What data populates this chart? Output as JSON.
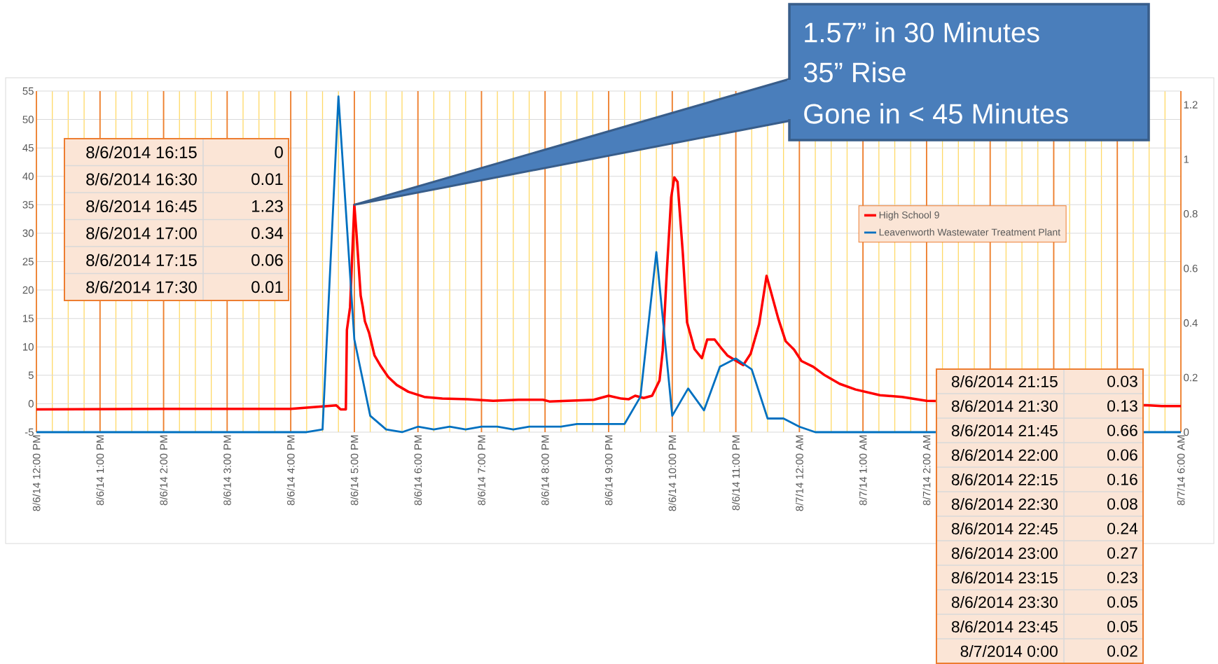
{
  "chart_data": {
    "type": "line",
    "xlim": [
      "2014-08-06T12:00",
      "2014-08-07T06:00"
    ],
    "xticks": [
      {
        "value": "2014-08-06T12:00",
        "label": "8/6/14 12:00 PM"
      },
      {
        "value": "2014-08-06T13:00",
        "label": "8/6/14 1:00 PM"
      },
      {
        "value": "2014-08-06T14:00",
        "label": "8/6/14 2:00 PM"
      },
      {
        "value": "2014-08-06T15:00",
        "label": "8/6/14 3:00 PM"
      },
      {
        "value": "2014-08-06T16:00",
        "label": "8/6/14 4:00 PM"
      },
      {
        "value": "2014-08-06T17:00",
        "label": "8/6/14 5:00 PM"
      },
      {
        "value": "2014-08-06T18:00",
        "label": "8/6/14 6:00 PM"
      },
      {
        "value": "2014-08-06T19:00",
        "label": "8/6/14 7:00 PM"
      },
      {
        "value": "2014-08-06T20:00",
        "label": "8/6/14 8:00 PM"
      },
      {
        "value": "2014-08-06T21:00",
        "label": "8/6/14 9:00 PM"
      },
      {
        "value": "2014-08-06T22:00",
        "label": "8/6/14 10:00 PM"
      },
      {
        "value": "2014-08-06T23:00",
        "label": "8/6/14 11:00 PM"
      },
      {
        "value": "2014-08-07T00:00",
        "label": "8/7/14 12:00 AM"
      },
      {
        "value": "2014-08-07T01:00",
        "label": "8/7/14 1:00 AM"
      },
      {
        "value": "2014-08-07T02:00",
        "label": "8/7/14 2:00 AM"
      },
      {
        "value": "2014-08-07T03:00",
        "label": null
      },
      {
        "value": "2014-08-07T04:00",
        "label": null
      },
      {
        "value": "2014-08-07T05:00",
        "label": null
      },
      {
        "value": "2014-08-07T06:00",
        "label": "8/7/14 6:00 AM"
      },
      {
        "value": "2014-08-06T12:15",
        "label": null
      },
      {
        "value": "2014-08-06T12:30",
        "label": null
      },
      {
        "value": "2014-08-06T12:45",
        "label": null
      },
      {
        "value": "2014-08-06T13:15",
        "label": null
      },
      {
        "value": "2014-08-06T13:30",
        "label": null
      },
      {
        "value": "2014-08-06T13:45",
        "label": null
      },
      {
        "value": "2014-08-06T14:15",
        "label": null
      },
      {
        "value": "2014-08-06T14:30",
        "label": null
      },
      {
        "value": "2014-08-06T14:45",
        "label": null
      },
      {
        "value": "2014-08-06T15:15",
        "label": null
      },
      {
        "value": "2014-08-06T15:30",
        "label": null
      },
      {
        "value": "2014-08-06T15:45",
        "label": null
      },
      {
        "value": "2014-08-06T16:15",
        "label": null
      },
      {
        "value": "2014-08-06T16:30",
        "label": null
      },
      {
        "value": "2014-08-06T16:45",
        "label": null
      },
      {
        "value": "2014-08-06T17:15",
        "label": null
      },
      {
        "value": "2014-08-06T17:30",
        "label": null
      },
      {
        "value": "2014-08-06T17:45",
        "label": null
      },
      {
        "value": "2014-08-06T18:15",
        "label": null
      },
      {
        "value": "2014-08-06T18:30",
        "label": null
      },
      {
        "value": "2014-08-06T18:45",
        "label": null
      },
      {
        "value": "2014-08-06T19:15",
        "label": null
      },
      {
        "value": "2014-08-06T19:30",
        "label": null
      },
      {
        "value": "2014-08-06T19:45",
        "label": null
      },
      {
        "value": "2014-08-06T20:15",
        "label": null
      },
      {
        "value": "2014-08-06T20:30",
        "label": null
      },
      {
        "value": "2014-08-06T20:45",
        "label": null
      },
      {
        "value": "2014-08-06T21:15",
        "label": null
      },
      {
        "value": "2014-08-06T21:30",
        "label": null
      },
      {
        "value": "2014-08-06T21:45",
        "label": null
      },
      {
        "value": "2014-08-06T22:15",
        "label": null
      },
      {
        "value": "2014-08-06T22:30",
        "label": null
      },
      {
        "value": "2014-08-06T22:45",
        "label": null
      },
      {
        "value": "2014-08-06T23:15",
        "label": null
      },
      {
        "value": "2014-08-06T23:30",
        "label": null
      },
      {
        "value": "2014-08-06T23:45",
        "label": null
      },
      {
        "value": "2014-08-07T00:15",
        "label": null
      },
      {
        "value": "2014-08-07T00:30",
        "label": null
      },
      {
        "value": "2014-08-07T00:45",
        "label": null
      },
      {
        "value": "2014-08-07T01:15",
        "label": null
      },
      {
        "value": "2014-08-07T01:30",
        "label": null
      },
      {
        "value": "2014-08-07T01:45",
        "label": null
      },
      {
        "value": "2014-08-07T02:15",
        "label": null
      },
      {
        "value": "2014-08-07T02:30",
        "label": null
      },
      {
        "value": "2014-08-07T02:45",
        "label": null
      },
      {
        "value": "2014-08-07T03:15",
        "label": null
      },
      {
        "value": "2014-08-07T03:30",
        "label": null
      },
      {
        "value": "2014-08-07T03:45",
        "label": null
      },
      {
        "value": "2014-08-07T04:15",
        "label": null
      },
      {
        "value": "2014-08-07T04:30",
        "label": null
      },
      {
        "value": "2014-08-07T04:45",
        "label": null
      },
      {
        "value": "2014-08-07T05:15",
        "label": null
      },
      {
        "value": "2014-08-07T05:30",
        "label": null
      },
      {
        "value": "2014-08-07T05:45",
        "label": null
      }
    ],
    "ylim": [
      -5,
      55
    ],
    "yticks": [
      -5,
      0,
      5,
      10,
      15,
      20,
      25,
      30,
      35,
      40,
      45,
      50,
      55
    ],
    "y2lim": [
      0,
      1.25
    ],
    "y2ticks": [
      0,
      0.2,
      0.4,
      0.6,
      0.8,
      1,
      1.2
    ],
    "grid": true,
    "legend": "top right",
    "series": [
      {
        "name": "High School 9",
        "color": "#ff0000",
        "x": [
          "2014-08-06T12:00",
          "2014-08-06T14:00",
          "2014-08-06T16:00",
          "2014-08-06T16:43",
          "2014-08-06T16:47",
          "2014-08-06T16:52",
          "2014-08-06T16:53",
          "2014-08-06T16:56",
          "2014-08-06T17:00",
          "2014-08-06T17:02",
          "2014-08-06T17:06",
          "2014-08-06T17:08",
          "2014-08-06T17:10",
          "2014-08-06T17:14",
          "2014-08-06T17:19",
          "2014-08-06T17:25",
          "2014-08-06T17:32",
          "2014-08-06T17:40",
          "2014-08-06T17:51",
          "2014-08-06T18:06",
          "2014-08-06T18:23",
          "2014-08-06T18:47",
          "2014-08-06T19:11",
          "2014-08-06T19:35",
          "2014-08-06T19:58",
          "2014-08-06T20:04",
          "2014-08-06T20:34",
          "2014-08-06T20:46",
          "2014-08-06T21:00",
          "2014-08-06T21:12",
          "2014-08-06T21:19",
          "2014-08-06T21:25",
          "2014-08-06T21:33",
          "2014-08-06T21:41",
          "2014-08-06T21:48",
          "2014-08-06T21:51",
          "2014-08-06T21:55",
          "2014-08-06T21:59",
          "2014-08-06T22:02",
          "2014-08-06T22:05",
          "2014-08-06T22:10",
          "2014-08-06T22:14",
          "2014-08-06T22:21",
          "2014-08-06T22:28",
          "2014-08-06T22:33",
          "2014-08-06T22:40",
          "2014-08-06T22:47",
          "2014-08-06T22:52",
          "2014-08-06T22:59",
          "2014-08-06T23:07",
          "2014-08-06T23:14",
          "2014-08-06T23:22",
          "2014-08-06T23:29",
          "2014-08-06T23:40",
          "2014-08-06T23:47",
          "2014-08-06T23:55",
          "2014-08-07T00:02",
          "2014-08-07T00:13",
          "2014-08-07T00:24",
          "2014-08-07T00:38",
          "2014-08-07T00:53",
          "2014-08-07T01:16",
          "2014-08-07T01:37",
          "2014-08-07T02:00",
          "2014-08-07T05:30",
          "2014-08-07T05:42",
          "2014-08-07T06:00"
        ],
        "values": [
          -1,
          -0.9,
          -0.9,
          -0.3,
          -1,
          -1,
          13,
          17,
          35,
          30,
          19,
          17,
          14.5,
          12.4,
          8.5,
          6.6,
          4.7,
          3.3,
          2.1,
          1.2,
          0.9,
          0.8,
          0.5,
          0.7,
          0.7,
          0.4,
          0.6,
          0.7,
          1.4,
          0.9,
          0.8,
          1.4,
          1,
          1.4,
          4.1,
          9.3,
          23.6,
          36.3,
          39.8,
          39,
          26.4,
          14.3,
          9.6,
          8,
          11.3,
          11.3,
          9.6,
          8.5,
          7.7,
          6.8,
          8.8,
          14,
          22.5,
          15,
          11,
          9.5,
          7.5,
          6.5,
          5,
          3.5,
          2.5,
          1.5,
          1.2,
          0.5,
          -0.3,
          -0.4,
          -0.4
        ]
      },
      {
        "name": "Leavenworth Wastewater Treatment Plant",
        "color": "#0070c0",
        "axis": "y2",
        "x": [
          "2014-08-06T12:00",
          "2014-08-06T16:15",
          "2014-08-06T16:30",
          "2014-08-06T16:45",
          "2014-08-06T17:00",
          "2014-08-06T17:15",
          "2014-08-06T17:30",
          "2014-08-06T17:45",
          "2014-08-06T18:00",
          "2014-08-06T18:15",
          "2014-08-06T18:30",
          "2014-08-06T18:45",
          "2014-08-06T19:00",
          "2014-08-06T19:15",
          "2014-08-06T19:30",
          "2014-08-06T19:45",
          "2014-08-06T20:00",
          "2014-08-06T20:15",
          "2014-08-06T20:30",
          "2014-08-06T20:45",
          "2014-08-06T21:00",
          "2014-08-06T21:15",
          "2014-08-06T21:30",
          "2014-08-06T21:45",
          "2014-08-06T22:00",
          "2014-08-06T22:15",
          "2014-08-06T22:30",
          "2014-08-06T22:45",
          "2014-08-06T23:00",
          "2014-08-06T23:15",
          "2014-08-06T23:30",
          "2014-08-06T23:45",
          "2014-08-07T00:00",
          "2014-08-07T00:15",
          "2014-08-07T06:00"
        ],
        "values": [
          0,
          0,
          0.01,
          1.23,
          0.34,
          0.06,
          0.01,
          0,
          0.02,
          0.01,
          0.02,
          0.01,
          0.02,
          0.02,
          0.01,
          0.02,
          0.02,
          0.02,
          0.03,
          0.03,
          0.03,
          0.03,
          0.13,
          0.66,
          0.06,
          0.16,
          0.08,
          0.24,
          0.27,
          0.23,
          0.05,
          0.05,
          0.02,
          0,
          0
        ]
      }
    ],
    "annotations": [
      "1.57” in 30 Minutes",
      "35” Rise",
      "Gone in < 45 Minutes",
      "8/6/2014 16:15",
      "0",
      "8/6/2014 16:30",
      "0.01",
      "8/6/2014 16:45",
      "1.23",
      "8/6/2014 17:00",
      "0.34",
      "8/6/2014 17:15",
      "0.06",
      "8/6/2014 17:30",
      "0.01",
      "8/6/2014 21:15",
      "0.03",
      "8/6/2014 21:30",
      "0.13",
      "8/6/2014 21:45",
      "0.66",
      "8/6/2014 22:00",
      "0.06",
      "8/6/2014 22:15",
      "0.16",
      "8/6/2014 22:30",
      "0.08",
      "8/6/2014 22:45",
      "0.24",
      "8/6/2014 23:00",
      "0.27",
      "8/6/2014 23:15",
      "0.23",
      "8/6/2014 23:30",
      "0.05",
      "8/6/2014 23:45",
      "0.05",
      "8/7/2014 0:00",
      "0.02"
    ]
  }
}
